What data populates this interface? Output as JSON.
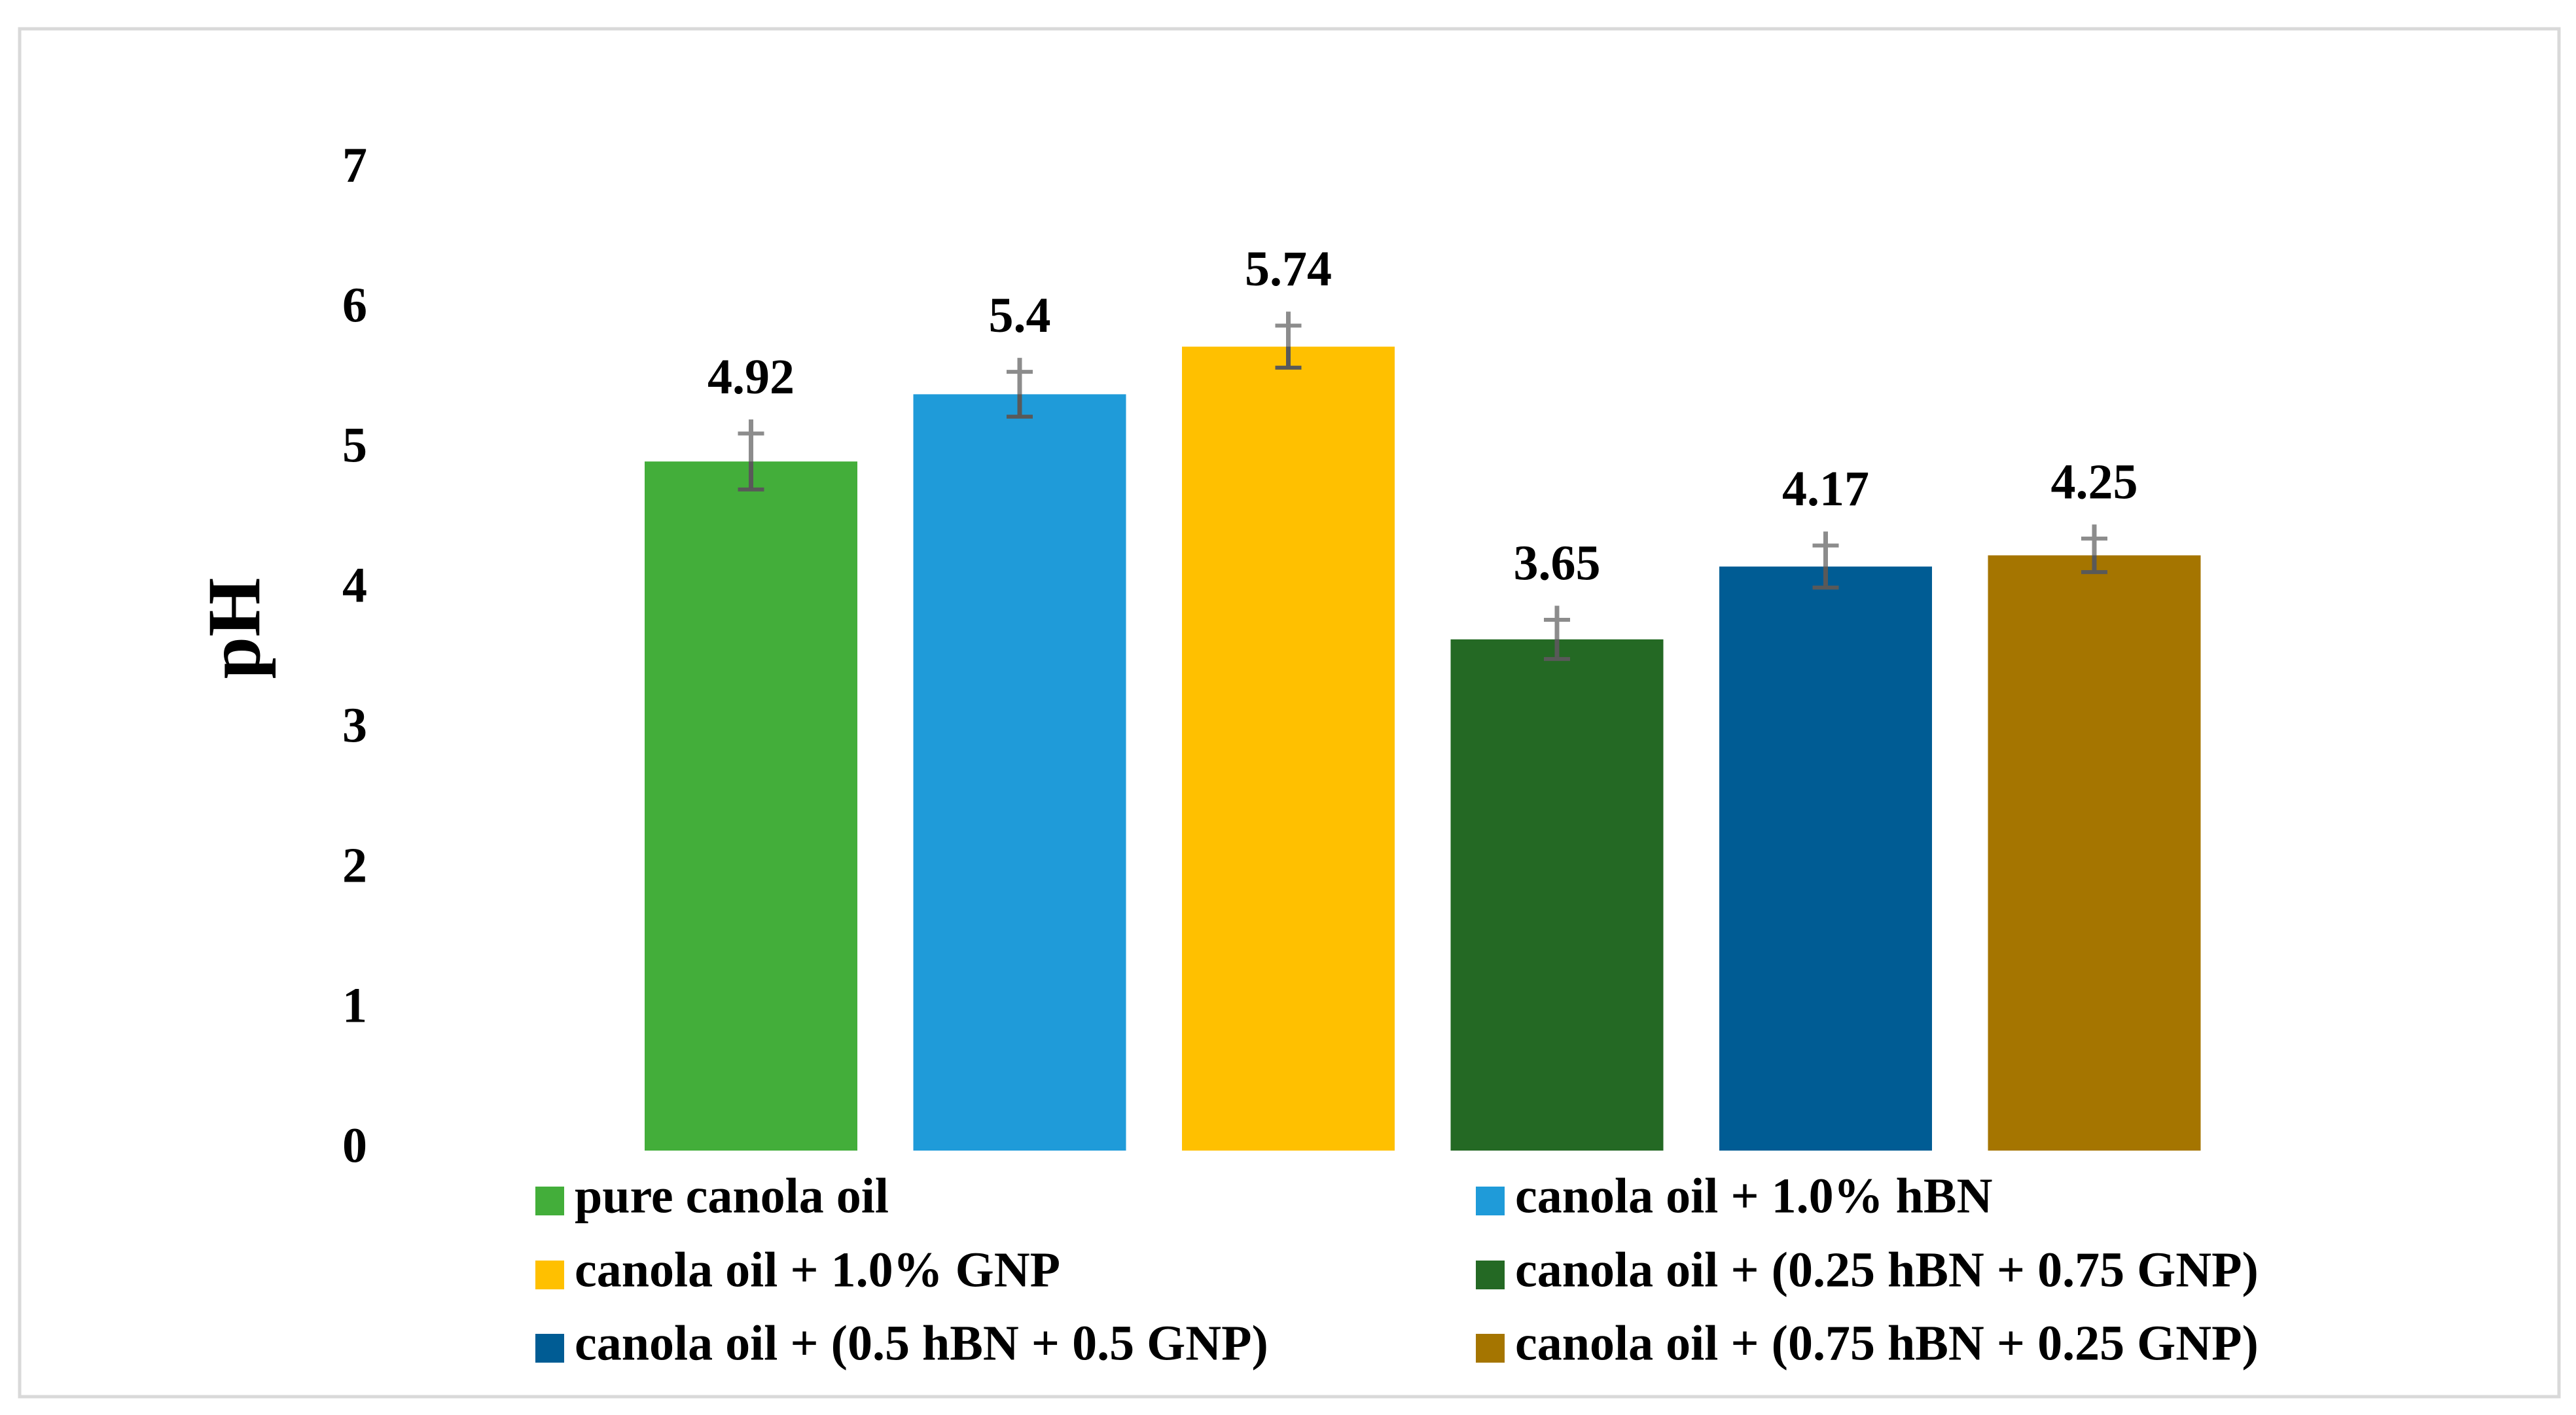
{
  "chart_data": {
    "type": "bar",
    "title": "",
    "xlabel": "",
    "ylabel": "pH",
    "ylim": [
      0,
      7
    ],
    "yticks": [
      0,
      1,
      2,
      3,
      4,
      5,
      6,
      7
    ],
    "grid": false,
    "legend_position": "bottom",
    "categories": [
      "pure canola oil",
      "canola oil + 1.0% hBN",
      "canola oil + 1.0% GNP",
      "canola oil + (0.25 hBN + 0.75 GNP)",
      "canola oil + (0.5 hBN + 0.5 GNP)",
      "canola oil + (0.75 hBN + 0.25 GNP)"
    ],
    "values": [
      4.92,
      5.4,
      5.74,
      3.65,
      4.17,
      4.25
    ],
    "value_labels": [
      "4.92",
      "5.4",
      "5.74",
      "3.65",
      "4.17",
      "4.25"
    ],
    "error": [
      0.2,
      0.16,
      0.15,
      0.14,
      0.15,
      0.12
    ],
    "colors": [
      "#43AE3A",
      "#1F9BD9",
      "#FFC000",
      "#246924",
      "#005C94",
      "#A57500"
    ]
  }
}
